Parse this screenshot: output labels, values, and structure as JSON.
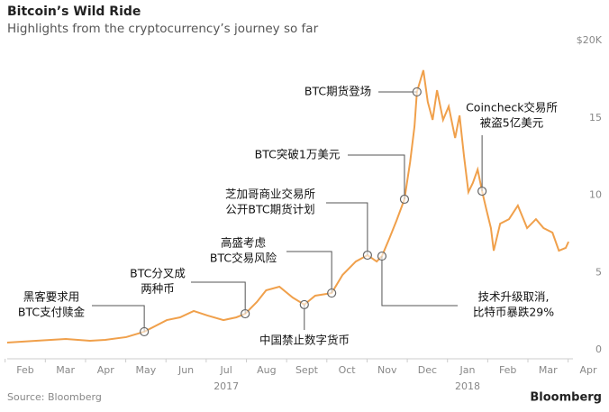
{
  "chart_data": {
    "type": "line",
    "title": "Bitcoin’s Wild Ride",
    "subtitle": "Highlights from the cryptocurrency’s journey so far",
    "source": "Source: Bloomberg",
    "brand": "Bloomberg",
    "x": [
      1.05,
      1.77,
      2.51,
      3.11,
      3.49,
      4.01,
      4.46,
      5.02,
      5.35,
      5.69,
      6.03,
      6.43,
      6.75,
      6.97,
      7.26,
      7.49,
      7.82,
      8.15,
      8.44,
      8.71,
      9.12,
      9.39,
      9.72,
      10.01,
      10.24,
      10.37,
      10.55,
      10.73,
      10.93,
      11.07,
      11.18,
      11.24,
      11.4,
      11.51,
      11.63,
      11.74,
      11.89,
      12.03,
      12.19,
      12.3,
      12.41,
      12.52,
      12.63,
      12.75,
      12.86,
      12.97,
      13.08,
      13.15,
      13.31,
      13.53,
      13.75,
      13.98,
      14.2,
      14.39,
      14.61,
      14.77,
      14.94,
      15.01
    ],
    "series": [
      {
        "color": "#f0a04b",
        "values": [
          0.47,
          0.58,
          0.7,
          0.58,
          0.64,
          0.82,
          1.17,
          1.92,
          2.1,
          2.51,
          2.22,
          1.92,
          2.1,
          2.33,
          3.09,
          3.85,
          4.08,
          3.38,
          2.92,
          3.5,
          3.67,
          4.84,
          5.71,
          6.12,
          5.71,
          6.06,
          7.17,
          8.34,
          9.74,
          12.13,
          14.46,
          16.68,
          18.08,
          16.03,
          14.87,
          16.79,
          14.87,
          15.74,
          13.7,
          15.16,
          12.54,
          10.2,
          10.79,
          11.66,
          10.26,
          9.04,
          7.87,
          6.41,
          8.16,
          8.45,
          9.33,
          7.87,
          8.45,
          7.87,
          7.58,
          6.41,
          6.59,
          6.99
        ]
      }
    ],
    "xlim": [
      1.05,
      15.1
    ],
    "xticks": [
      {
        "value": 1.5,
        "label": "Feb"
      },
      {
        "value": 2.5,
        "label": "Mar"
      },
      {
        "value": 3.5,
        "label": "Apr"
      },
      {
        "value": 4.5,
        "label": "May"
      },
      {
        "value": 5.5,
        "label": "Jun"
      },
      {
        "value": 6.5,
        "label": "Jul"
      },
      {
        "value": 7.5,
        "label": "Aug"
      },
      {
        "value": 8.5,
        "label": "Sept"
      },
      {
        "value": 9.5,
        "label": "Oct"
      },
      {
        "value": 10.5,
        "label": "Nov"
      },
      {
        "value": 11.5,
        "label": "Dec"
      },
      {
        "value": 12.5,
        "label": "Jan"
      },
      {
        "value": 13.5,
        "label": "Feb"
      },
      {
        "value": 14.5,
        "label": "Mar"
      },
      {
        "value": 15.5,
        "label": "Apr"
      }
    ],
    "year_labels": [
      {
        "value": 6.5,
        "label": "2017"
      },
      {
        "value": 12.5,
        "label": "2018"
      }
    ],
    "ylim": [
      0,
      20
    ],
    "yticks": [
      0,
      5,
      10,
      15,
      {
        "value": 20,
        "label": "$20K"
      }
    ],
    "annotations": [
      {
        "lines": [
          "黑客要求用",
          "BTC支付赎金"
        ],
        "x": 4.46,
        "y": 1.17
      },
      {
        "lines": [
          "BTC分叉成",
          "两种币"
        ],
        "x": 6.97,
        "y": 2.33
      },
      {
        "lines": [
          "高盛考虑",
          "BTC交易风险"
        ],
        "x": 9.12,
        "y": 3.67
      },
      {
        "lines": [
          "芝加哥商业交易所",
          "公开BTC期货计划"
        ],
        "x": 10.01,
        "y": 6.12
      },
      {
        "lines": [
          "BTC突破1万美元"
        ],
        "x": 10.93,
        "y": 9.74
      },
      {
        "lines": [
          "BTC期货登场"
        ],
        "x": 11.24,
        "y": 16.68
      },
      {
        "lines": [
          "Coincheck交易所",
          "被盗5亿美元"
        ],
        "x": 12.86,
        "y": 10.26
      },
      {
        "lines": [
          "中国禁止数字货币"
        ],
        "x": 8.44,
        "y": 2.92
      },
      {
        "lines": [
          "技术升级取消,",
          "比特币暴跌29%"
        ],
        "x": 10.37,
        "y": 6.06
      }
    ]
  }
}
